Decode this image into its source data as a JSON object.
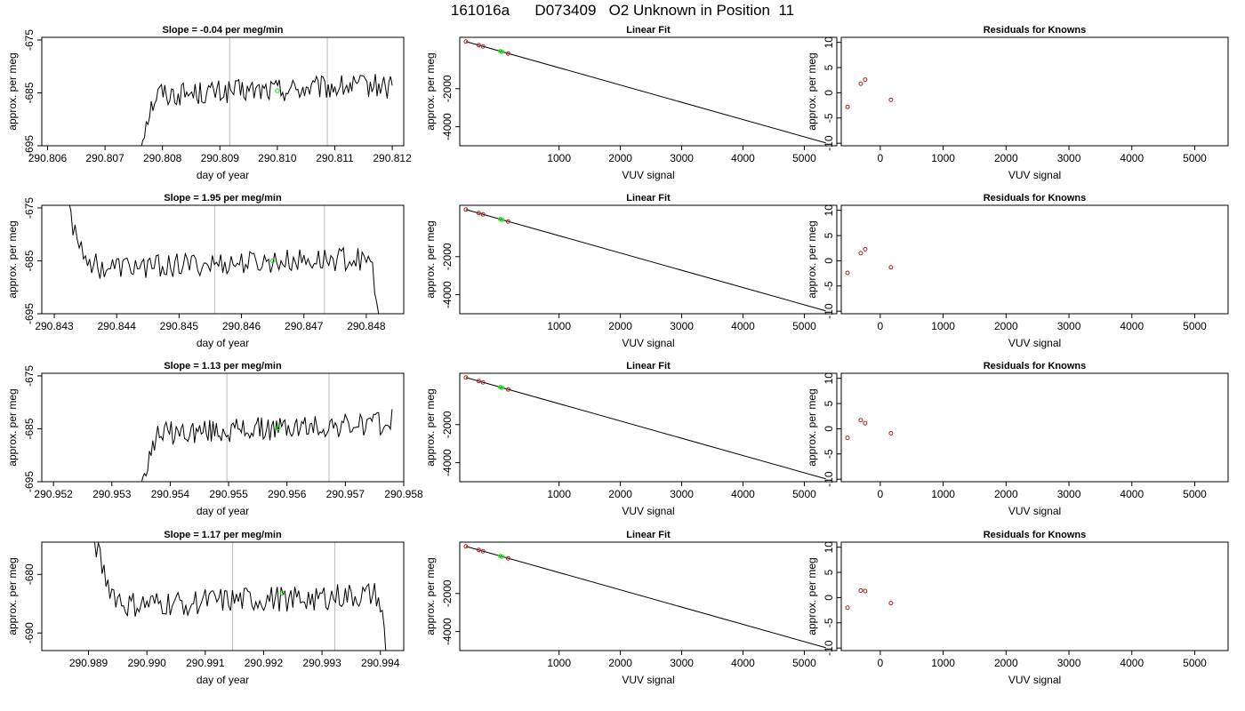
{
  "title": "161016a      D073409   O2 Unknown in Position  11",
  "chart_data": [
    {
      "type": "line",
      "panel": "time-series",
      "row": 1,
      "title": "Slope =  -0.04  per meg/min",
      "xlabel": "day of year",
      "ylabel": "approx. per meg",
      "xlim": [
        290.8059,
        290.8122
      ],
      "ylim": [
        -695,
        -674.5
      ],
      "xticks": [
        290.806,
        290.807,
        290.808,
        290.809,
        290.81,
        290.811,
        290.812
      ],
      "xtick_labels": [
        "290.806",
        "290.807",
        "290.808",
        "290.809",
        "290.810",
        "290.811",
        "290.812"
      ],
      "yticks": [
        -695,
        -685,
        -675
      ],
      "ytick_labels": [
        "-695",
        "-685",
        "-675"
      ],
      "vlines": [
        290.80917,
        290.81087
      ],
      "marker": {
        "x": 290.81,
        "y": -684.6,
        "color": "#00ee00"
      },
      "start": {
        "x": 290.8076,
        "y": -695.5
      },
      "level": -684.5,
      "end": {
        "x": 290.812,
        "y": -682
      }
    },
    {
      "type": "scatter",
      "panel": "linear-fit",
      "row": 1,
      "title": "Linear Fit",
      "xlabel": "VUV signal",
      "ylabel": "approx. per meg",
      "xlim": [
        -620,
        5530
      ],
      "ylim": [
        -5000,
        700
      ],
      "xticks": [
        1000,
        2000,
        3000,
        4000,
        5000
      ],
      "xtick_labels": [
        "1000",
        "2000",
        "3000",
        "4000",
        "5000"
      ],
      "yticks": [
        -4000,
        -2000
      ],
      "ytick_labels": [
        "-4000",
        "-2000"
      ],
      "line": {
        "x": [
          -520,
          5350
        ],
        "y": [
          480,
          -4850
        ]
      },
      "knowns": {
        "x": [
          -520,
          -310,
          -240,
          170
        ],
        "y": [
          480,
          290,
          220,
          -150
        ]
      },
      "unknown": {
        "x": [
          40,
          70
        ],
        "y": [
          -30,
          -60
        ]
      }
    },
    {
      "type": "scatter",
      "panel": "residuals",
      "row": 1,
      "title": "Residuals for Knowns",
      "xlabel": "VUV signal",
      "ylabel": "approx. per meg",
      "xlim": [
        -620,
        5530
      ],
      "ylim": [
        -10.5,
        11
      ],
      "xticks": [
        0,
        1000,
        2000,
        3000,
        4000,
        5000
      ],
      "xtick_labels": [
        "0",
        "1000",
        "2000",
        "3000",
        "4000",
        "5000"
      ],
      "yticks": [
        -10,
        -5,
        0,
        5,
        10
      ],
      "ytick_labels": [
        "-10",
        "-5",
        "0",
        "5",
        "10"
      ],
      "x": [
        -520,
        -310,
        -240,
        170
      ],
      "y": [
        -2.8,
        1.8,
        2.6,
        -1.4
      ]
    },
    {
      "type": "line",
      "panel": "time-series",
      "row": 2,
      "title": "Slope =  1.95  per meg/min",
      "xlabel": "day of year",
      "ylabel": "approx. per meg",
      "xlim": [
        290.8428,
        290.8486
      ],
      "ylim": [
        -695,
        -674.5
      ],
      "xticks": [
        290.843,
        290.844,
        290.845,
        290.846,
        290.847,
        290.848
      ],
      "xtick_labels": [
        "290.843",
        "290.844",
        "290.845",
        "290.846",
        "290.847",
        "290.848"
      ],
      "yticks": [
        -695,
        -685,
        -675
      ],
      "ytick_labels": [
        "-695",
        "-685",
        "-675"
      ],
      "vlines": [
        290.84557,
        290.84733
      ],
      "marker": {
        "x": 290.8465,
        "y": -685,
        "color": "#00ee00"
      },
      "start": {
        "x": 290.8432,
        "y": -674
      },
      "level": -685.5,
      "end": {
        "x": 290.8482,
        "y": -697
      }
    },
    {
      "type": "scatter",
      "panel": "linear-fit",
      "row": 2,
      "title": "Linear Fit",
      "xlabel": "VUV signal",
      "ylabel": "approx. per meg",
      "xlim": [
        -620,
        5530
      ],
      "ylim": [
        -5000,
        700
      ],
      "xticks": [
        1000,
        2000,
        3000,
        4000,
        5000
      ],
      "xtick_labels": [
        "1000",
        "2000",
        "3000",
        "4000",
        "5000"
      ],
      "yticks": [
        -4000,
        -2000
      ],
      "ytick_labels": [
        "-4000",
        "-2000"
      ],
      "line": {
        "x": [
          -520,
          5350
        ],
        "y": [
          480,
          -4850
        ]
      },
      "knowns": {
        "x": [
          -520,
          -310,
          -240,
          170
        ],
        "y": [
          480,
          290,
          220,
          -150
        ]
      },
      "unknown": {
        "x": [
          40,
          70
        ],
        "y": [
          -30,
          -60
        ]
      }
    },
    {
      "type": "scatter",
      "panel": "residuals",
      "row": 2,
      "title": "Residuals for Knowns",
      "xlabel": "VUV signal",
      "ylabel": "approx. per meg",
      "xlim": [
        -620,
        5530
      ],
      "ylim": [
        -10.5,
        11
      ],
      "xticks": [
        0,
        1000,
        2000,
        3000,
        4000,
        5000
      ],
      "xtick_labels": [
        "0",
        "1000",
        "2000",
        "3000",
        "4000",
        "5000"
      ],
      "yticks": [
        -10,
        -5,
        0,
        5,
        10
      ],
      "ytick_labels": [
        "-10",
        "-5",
        "0",
        "5",
        "10"
      ],
      "x": [
        -520,
        -310,
        -240,
        170
      ],
      "y": [
        -2.4,
        1.5,
        2.3,
        -1.3
      ]
    },
    {
      "type": "line",
      "panel": "time-series",
      "row": 3,
      "title": "Slope =  1.13  per meg/min",
      "xlabel": "day of year",
      "ylabel": "approx. per meg",
      "xlim": [
        290.9518,
        290.958
      ],
      "ylim": [
        -695,
        -674.5
      ],
      "xticks": [
        290.952,
        290.953,
        290.954,
        290.955,
        290.956,
        290.957,
        290.958
      ],
      "xtick_labels": [
        "290.952",
        "290.953",
        "290.954",
        "290.955",
        "290.956",
        "290.957",
        "290.958"
      ],
      "yticks": [
        -695,
        -685,
        -675
      ],
      "ytick_labels": [
        "-695",
        "-685",
        "-675"
      ],
      "vlines": [
        290.95497,
        290.95672
      ],
      "marker": {
        "x": 290.95585,
        "y": -684.8,
        "color": "#00ee00"
      },
      "start": {
        "x": 290.9535,
        "y": -695.5
      },
      "level": -685,
      "end": {
        "x": 290.9578,
        "y": -682
      }
    },
    {
      "type": "scatter",
      "panel": "linear-fit",
      "row": 3,
      "title": "Linear Fit",
      "xlabel": "VUV signal",
      "ylabel": "approx. per meg",
      "xlim": [
        -620,
        5530
      ],
      "ylim": [
        -5000,
        700
      ],
      "xticks": [
        1000,
        2000,
        3000,
        4000,
        5000
      ],
      "xtick_labels": [
        "1000",
        "2000",
        "3000",
        "4000",
        "5000"
      ],
      "yticks": [
        -4000,
        -2000
      ],
      "ytick_labels": [
        "-4000",
        "-2000"
      ],
      "line": {
        "x": [
          -520,
          5350
        ],
        "y": [
          480,
          -4850
        ]
      },
      "knowns": {
        "x": [
          -520,
          -310,
          -240,
          170
        ],
        "y": [
          480,
          290,
          220,
          -150
        ]
      },
      "unknown": {
        "x": [
          40,
          70
        ],
        "y": [
          -30,
          -60
        ]
      }
    },
    {
      "type": "scatter",
      "panel": "residuals",
      "row": 3,
      "title": "Residuals for Knowns",
      "xlabel": "VUV signal",
      "ylabel": "approx. per meg",
      "xlim": [
        -620,
        5530
      ],
      "ylim": [
        -10.5,
        11
      ],
      "xticks": [
        0,
        1000,
        2000,
        3000,
        4000,
        5000
      ],
      "xtick_labels": [
        "0",
        "1000",
        "2000",
        "3000",
        "4000",
        "5000"
      ],
      "yticks": [
        -10,
        -5,
        0,
        5,
        10
      ],
      "ytick_labels": [
        "-10",
        "-5",
        "0",
        "5",
        "10"
      ],
      "x": [
        -520,
        -310,
        -240,
        170
      ],
      "y": [
        -1.8,
        1.7,
        1.1,
        -0.9
      ]
    },
    {
      "type": "line",
      "panel": "time-series",
      "row": 4,
      "title": "Slope =  1.17  per meg/min",
      "xlabel": "day of year",
      "ylabel": "approx. per meg",
      "xlim": [
        290.9882,
        290.9944
      ],
      "ylim": [
        -693,
        -674.5
      ],
      "xticks": [
        290.989,
        290.99,
        290.991,
        290.992,
        290.993,
        290.994
      ],
      "xtick_labels": [
        "290.989",
        "290.990",
        "290.991",
        "290.992",
        "290.993",
        "290.994"
      ],
      "yticks": [
        -690,
        -680
      ],
      "ytick_labels": [
        "-690",
        "-680"
      ],
      "vlines": [
        290.99147,
        290.99322
      ],
      "marker": {
        "x": 290.99232,
        "y": -683.2,
        "color": "#00ee00"
      },
      "start": {
        "x": 290.9891,
        "y": -674
      },
      "level": -684.5,
      "end": {
        "x": 290.9941,
        "y": -694
      }
    },
    {
      "type": "scatter",
      "panel": "linear-fit",
      "row": 4,
      "title": "Linear Fit",
      "xlabel": "VUV signal",
      "ylabel": "approx. per meg",
      "xlim": [
        -620,
        5530
      ],
      "ylim": [
        -5000,
        700
      ],
      "xticks": [
        1000,
        2000,
        3000,
        4000,
        5000
      ],
      "xtick_labels": [
        "1000",
        "2000",
        "3000",
        "4000",
        "5000"
      ],
      "yticks": [
        -4000,
        -2000
      ],
      "ytick_labels": [
        "-4000",
        "-2000"
      ],
      "line": {
        "x": [
          -520,
          5350
        ],
        "y": [
          480,
          -4850
        ]
      },
      "knowns": {
        "x": [
          -520,
          -310,
          -240,
          170
        ],
        "y": [
          480,
          290,
          220,
          -150
        ]
      },
      "unknown": {
        "x": [
          40,
          70
        ],
        "y": [
          -30,
          -60
        ]
      }
    },
    {
      "type": "scatter",
      "panel": "residuals",
      "row": 4,
      "title": "Residuals for Knowns",
      "xlabel": "VUV signal",
      "ylabel": "approx. per meg",
      "xlim": [
        -620,
        5530
      ],
      "ylim": [
        -10.5,
        11
      ],
      "xticks": [
        0,
        1000,
        2000,
        3000,
        4000,
        5000
      ],
      "xtick_labels": [
        "0",
        "1000",
        "2000",
        "3000",
        "4000",
        "5000"
      ],
      "yticks": [
        -10,
        -5,
        0,
        5,
        10
      ],
      "ytick_labels": [
        "-10",
        "-5",
        "0",
        "5",
        "10"
      ],
      "x": [
        -520,
        -310,
        -240,
        170
      ],
      "y": [
        -2.0,
        1.4,
        1.3,
        -1.1
      ]
    }
  ]
}
